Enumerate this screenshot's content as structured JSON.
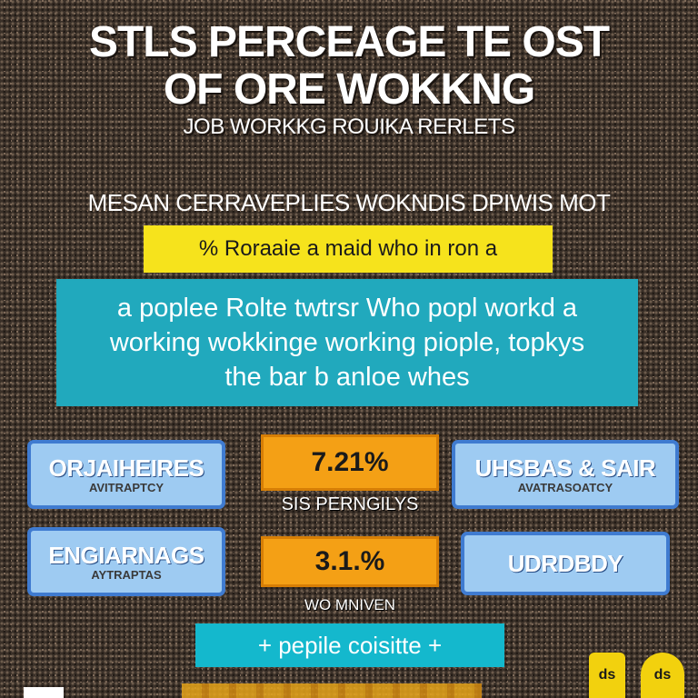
{
  "title": {
    "line1": "STLS PERCEAGE TE OST",
    "line2": "OF ORE WOKKNG",
    "line3": "JOB WORKKG ROUIKA RERLETS"
  },
  "subhead": "MESAN CERRAVEPLIES WOKNDIS DPIWIS MOT",
  "yellow_banner": "% Roraaie a maid who in ron a",
  "teal_box": {
    "line1": "a poplee Rolte twtrsr Who popl workd a",
    "line2": "working wokkinge working piople, topkys",
    "line3": "the bar b anloe whes"
  },
  "left_boxes": [
    {
      "main": "ORJAIHEIRES",
      "sub": "AVITRAPTCY"
    },
    {
      "main": "ENGIARNAGS",
      "sub": "AYTRAPTAS"
    }
  ],
  "right_boxes": [
    {
      "main": "UHSBAS & SAIR",
      "sub": "AVATRASOATCY"
    },
    {
      "main": "UDRDBDY",
      "sub": ""
    }
  ],
  "stats": [
    {
      "value": "7.21%",
      "caption": "SIS PERNGILYS"
    },
    {
      "value": "3.1.%",
      "caption": "WO MNIVEN"
    }
  ],
  "cyan_banner": "+ pepile coisitte +",
  "tags": [
    "ds",
    "ds"
  ],
  "colors": {
    "yellow": "#f6e31c",
    "teal": "#21a9bd",
    "blue_box": "#9ecbf2",
    "blue_border": "#3f7bd0",
    "orange": "#f4a015",
    "cyan": "#14b8cd"
  }
}
